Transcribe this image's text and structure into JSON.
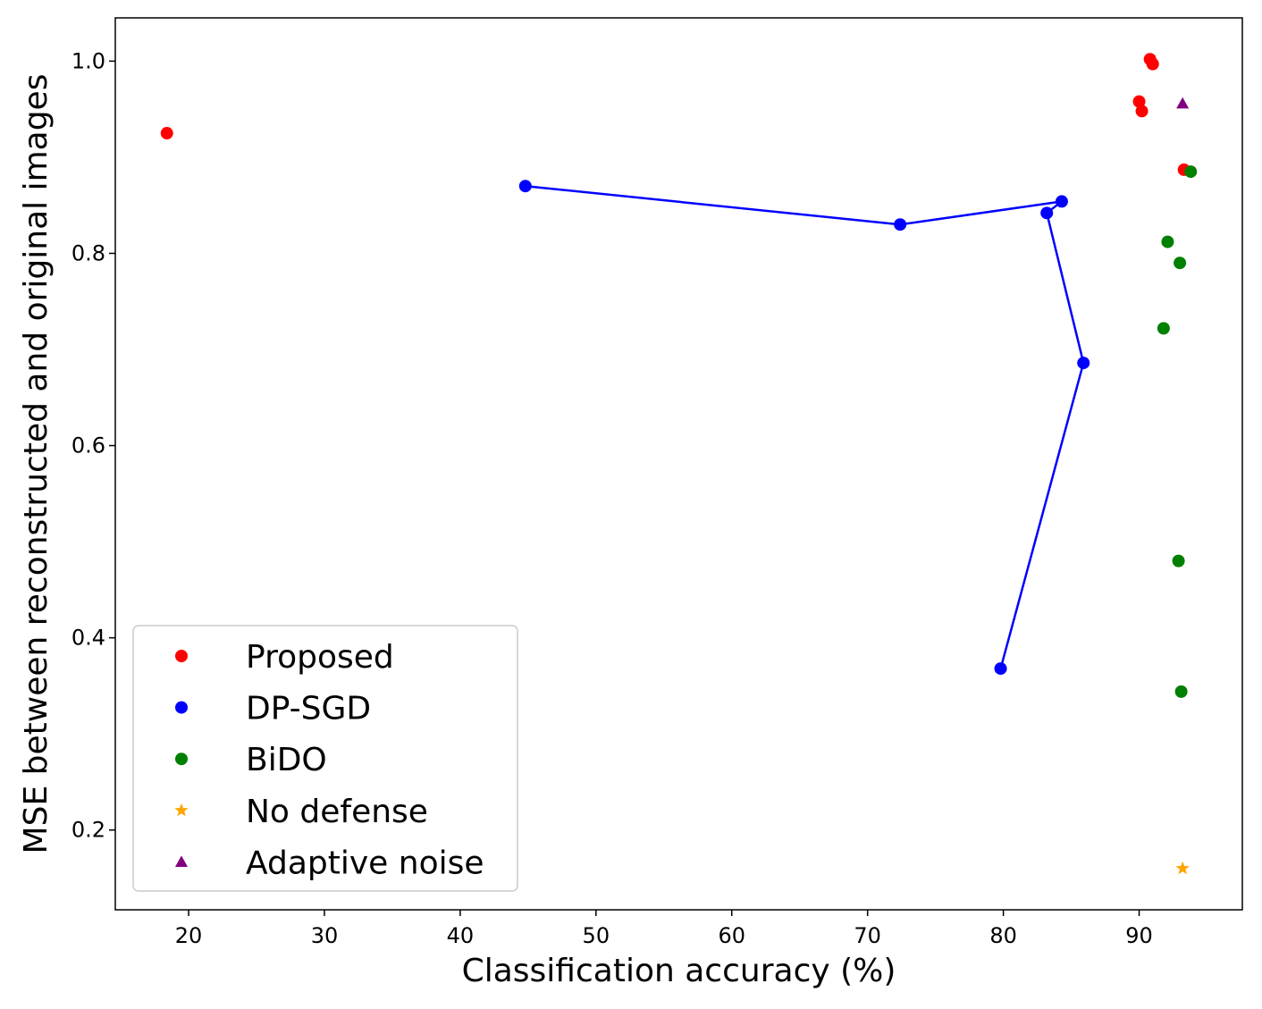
{
  "chart_data": {
    "type": "scatter",
    "title": "",
    "xlabel": "Classification accuracy (%)",
    "ylabel": "MSE between reconstructed and original images",
    "xlim": [
      14.6,
      97.6
    ],
    "ylim": [
      0.117,
      1.045
    ],
    "xticks": [
      20,
      30,
      40,
      50,
      60,
      70,
      80,
      90
    ],
    "xtick_labels": [
      "20",
      "30",
      "40",
      "50",
      "60",
      "70",
      "80",
      "90"
    ],
    "yticks": [
      0.2,
      0.4,
      0.6,
      0.8,
      1.0
    ],
    "ytick_labels": [
      "0.2",
      "0.4",
      "0.6",
      "0.8",
      "1.0"
    ],
    "grid": false,
    "legend_position": "lower-left",
    "series": [
      {
        "name": "Proposed",
        "color": "#ff0000",
        "marker": "circle",
        "connected": false,
        "points": [
          {
            "x": 18.4,
            "y": 0.925
          },
          {
            "x": 90.0,
            "y": 0.958
          },
          {
            "x": 90.2,
            "y": 0.948
          },
          {
            "x": 90.8,
            "y": 1.002
          },
          {
            "x": 91.0,
            "y": 0.997
          },
          {
            "x": 93.3,
            "y": 0.887
          }
        ]
      },
      {
        "name": "DP-SGD",
        "color": "#0000ff",
        "marker": "circle",
        "connected": true,
        "points": [
          {
            "x": 44.8,
            "y": 0.87
          },
          {
            "x": 72.4,
            "y": 0.83
          },
          {
            "x": 84.3,
            "y": 0.854
          },
          {
            "x": 83.2,
            "y": 0.842
          },
          {
            "x": 85.9,
            "y": 0.686
          },
          {
            "x": 79.8,
            "y": 0.368
          }
        ]
      },
      {
        "name": "BiDO",
        "color": "#008000",
        "marker": "circle",
        "connected": false,
        "points": [
          {
            "x": 93.8,
            "y": 0.885
          },
          {
            "x": 92.1,
            "y": 0.812
          },
          {
            "x": 93.0,
            "y": 0.79
          },
          {
            "x": 91.8,
            "y": 0.722
          },
          {
            "x": 92.9,
            "y": 0.48
          },
          {
            "x": 93.1,
            "y": 0.344
          }
        ]
      },
      {
        "name": "No defense",
        "color": "#ffa500",
        "marker": "star",
        "connected": false,
        "points": [
          {
            "x": 93.2,
            "y": 0.16
          }
        ]
      },
      {
        "name": "Adaptive noise",
        "color": "#800080",
        "marker": "triangle",
        "connected": false,
        "points": [
          {
            "x": 93.2,
            "y": 0.956
          }
        ]
      }
    ]
  }
}
